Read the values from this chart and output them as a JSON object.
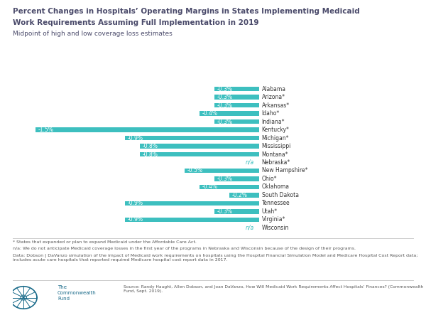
{
  "title_line1": "Percent Changes in Hospitals’ Operating Margins in States Implementing Medicaid",
  "title_line2": "Work Requirements Assuming Full Implementation in 2019",
  "subtitle": "Midpoint of high and low coverage loss estimates",
  "states": [
    "Alabama",
    "Arizona*",
    "Arkansas*",
    "Idaho*",
    "Indiana*",
    "Kentucky*",
    "Michigan*",
    "Mississippi",
    "Montana*",
    "Nebraska*",
    "New Hampshire*",
    "Ohio*",
    "Oklahoma",
    "South Dakota",
    "Tennessee",
    "Utah*",
    "Virginia*",
    "Wisconsin"
  ],
  "values": [
    -0.3,
    -0.3,
    -0.3,
    -0.4,
    -0.3,
    -1.5,
    -0.9,
    -0.8,
    -0.8,
    null,
    -0.5,
    -0.3,
    -0.4,
    -0.2,
    -0.9,
    -0.3,
    -0.9,
    null
  ],
  "bar_color": "#3dbfbf",
  "label_color_inside": "#ffffff",
  "label_color_na": "#3dbfbf",
  "background_color": "#ffffff",
  "title_color": "#4a4a6a",
  "subtitle_color": "#4a4a6a",
  "footnote_color": "#555555",
  "state_color": "#333333",
  "logo_color": "#1a6b8a",
  "footnote1": "* States that expanded or plan to expand Medicaid under the Affordable Care Act.",
  "footnote2": "n/a: We do not anticipate Medicaid coverage losses in the first year of the programs in Nebraska and Wisconsin because of the design of their programs.",
  "footnote3": "Data: Dobson | DaVanzo simulation of the impact of Medicaid work requirements on hospitals using the Hospital Financial Simulation Model and Medicare Hospital Cost Report data; includes acute care hospitals that reported required Medicare hospital cost report data in 2017.",
  "source": "Source: Randy Haught, Allen Dobson, and Joan DaVanzo, How Will Medicaid Work Requirements Affect Hospitals’ Finances? (Commonwealth Fund, Sept. 2019).",
  "xlim": [
    -1.65,
    0.0
  ],
  "bar_height": 0.55
}
